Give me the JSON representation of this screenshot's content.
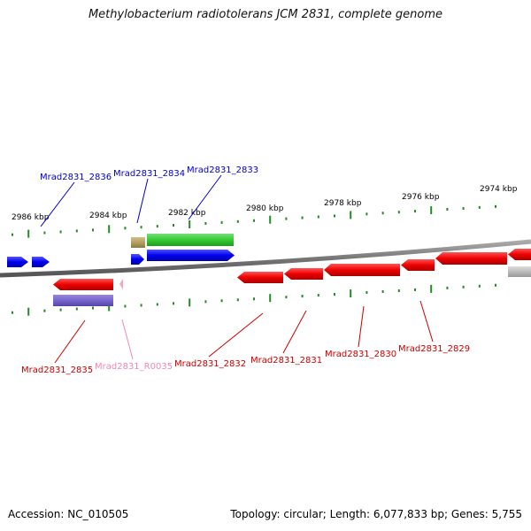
{
  "title": "Methylobacterium radiotolerans JCM 2831, complete genome",
  "footer": {
    "accession": "Accession: NC_010505",
    "summary": "Topology: circular; Length: 6,077,833 bp; Genes: 5,755"
  },
  "colors": {
    "forward_gene": "#0000ee",
    "reverse_gene": "#ee0000",
    "green_gene": "#33cc33",
    "olive_gene": "#b3a060",
    "purple_gene": "#7766cc",
    "pink_gene": "#f4a6c8",
    "gray_gene": "#c0c0c0",
    "tick": "#228b22",
    "backbone": "#7a7a7a",
    "label_blue": "#0000cc",
    "label_red": "#cc0000",
    "label_pink": "#ee88bb"
  },
  "scale_labels": [
    "2986 kbp",
    "2984 kbp",
    "2982 kbp",
    "2980 kbp",
    "2978 kbp",
    "2976 kbp",
    "2974 kbp"
  ],
  "gene_labels": [
    {
      "text": "Mrad2831_2836",
      "color": "label_blue"
    },
    {
      "text": "Mrad2831_2834",
      "color": "label_blue"
    },
    {
      "text": "Mrad2831_2833",
      "color": "label_blue"
    },
    {
      "text": "Mrad2831_2835",
      "color": "label_red"
    },
    {
      "text": "Mrad2831_R0035",
      "color": "label_pink"
    },
    {
      "text": "Mrad2831_2832",
      "color": "label_red"
    },
    {
      "text": "Mrad2831_2831",
      "color": "label_red"
    },
    {
      "text": "Mrad2831_2830",
      "color": "label_red"
    },
    {
      "text": "Mrad2831_2829",
      "color": "label_red"
    }
  ]
}
